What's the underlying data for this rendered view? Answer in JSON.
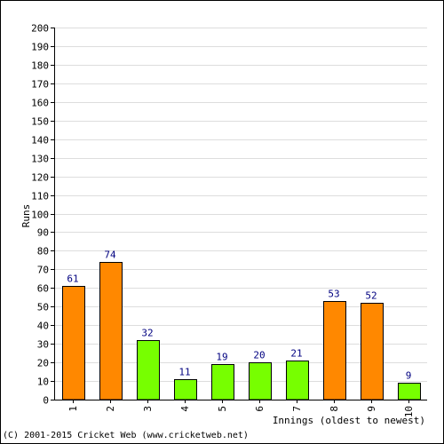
{
  "chart_data": {
    "type": "bar",
    "title": "",
    "xlabel": "Innings (oldest to newest)",
    "ylabel": "Runs",
    "ylim": [
      0,
      200
    ],
    "ytick_step": 10,
    "grid": true,
    "categories": [
      "1",
      "2",
      "3",
      "4",
      "5",
      "6",
      "7",
      "8",
      "9",
      "10"
    ],
    "values": [
      61,
      74,
      32,
      11,
      19,
      20,
      21,
      53,
      52,
      9
    ],
    "bar_colors": [
      "#ff8800",
      "#ff8800",
      "#77ff00",
      "#77ff00",
      "#77ff00",
      "#77ff00",
      "#77ff00",
      "#ff8800",
      "#ff8800",
      "#77ff00"
    ],
    "value_label_color": "#000080",
    "grid_color": "#dddddd"
  },
  "footer": {
    "copyright": "(C) 2001-2015 Cricket Web (www.cricketweb.net)"
  }
}
